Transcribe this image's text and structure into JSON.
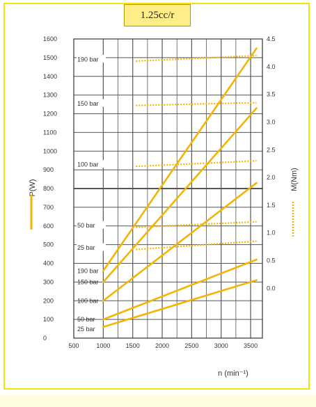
{
  "title": "1.25cc/r",
  "chart_data": {
    "type": "line",
    "title": "1.25cc/r",
    "xlabel": "n (min⁻¹)",
    "ylabel_left": "P(W)",
    "ylabel_right": "M(Nm)",
    "xlim": [
      500,
      3700
    ],
    "ylim_left": [
      0,
      1600
    ],
    "ylim_right": [
      -0.9,
      4.5
    ],
    "x_ticks": [
      "500",
      "1000",
      "1500",
      "2000",
      "2500",
      "3000",
      "3500"
    ],
    "y_left_ticks": [
      "0",
      "100",
      "200",
      "300",
      "400",
      "500",
      "600",
      "700",
      "800",
      "900",
      "1000",
      "1100",
      "1200",
      "1300",
      "1400",
      "1500",
      "1600"
    ],
    "y_right_ticks": [
      "0.0",
      "0.5",
      "1.0",
      "1.5",
      "2.0",
      "2.5",
      "3.0",
      "3.5",
      "4.0",
      "4.5"
    ],
    "grid": true,
    "power_series": [
      {
        "label": "190 bar",
        "axis": "left",
        "style": "solid",
        "points": [
          [
            1000,
            360
          ],
          [
            3600,
            1550
          ]
        ]
      },
      {
        "label": "150 bar",
        "axis": "left",
        "style": "solid",
        "points": [
          [
            1000,
            300
          ],
          [
            3600,
            1230
          ]
        ]
      },
      {
        "label": "100 bar",
        "axis": "left",
        "style": "solid",
        "points": [
          [
            1000,
            200
          ],
          [
            3600,
            830
          ]
        ]
      },
      {
        "label": "50 bar",
        "axis": "left",
        "style": "solid",
        "points": [
          [
            1000,
            100
          ],
          [
            3600,
            420
          ]
        ]
      },
      {
        "label": "25 bar",
        "axis": "left",
        "style": "solid",
        "points": [
          [
            1000,
            60
          ],
          [
            3600,
            310
          ]
        ]
      }
    ],
    "torque_series": [
      {
        "label": "190 bar",
        "axis": "right",
        "style": "dotted",
        "points": [
          [
            1000,
            4.1
          ],
          [
            3600,
            4.2
          ]
        ]
      },
      {
        "label": "150 bar",
        "axis": "right",
        "style": "dotted",
        "points": [
          [
            1000,
            3.3
          ],
          [
            3600,
            3.35
          ]
        ]
      },
      {
        "label": "100 bar",
        "axis": "right",
        "style": "dotted",
        "points": [
          [
            1000,
            2.2
          ],
          [
            3600,
            2.3
          ]
        ]
      },
      {
        "label": "50 bar",
        "axis": "right",
        "style": "dotted",
        "points": [
          [
            1000,
            1.1
          ],
          [
            3600,
            1.2
          ]
        ]
      },
      {
        "label": "25 bar",
        "axis": "right",
        "style": "dotted",
        "points": [
          [
            1000,
            0.7
          ],
          [
            3600,
            0.85
          ]
        ]
      }
    ],
    "line_color": "#f5b400"
  },
  "colors": {
    "line": "#f5b400",
    "grid": "#555555",
    "border": "#f2e600",
    "title_bg": "#ffee88"
  }
}
